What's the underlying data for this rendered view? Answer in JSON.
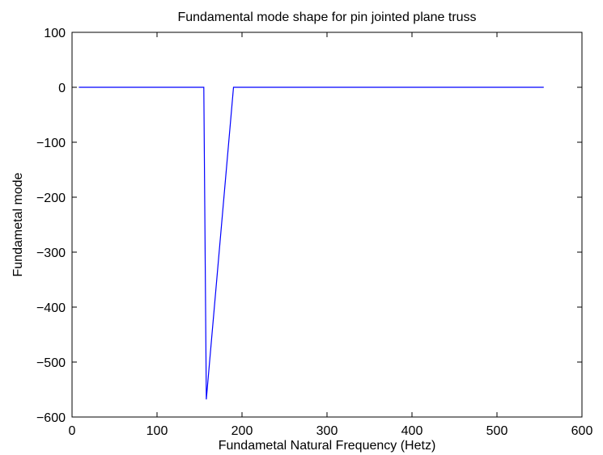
{
  "chart_data": {
    "type": "line",
    "title": "Fundamental mode shape for pin jointed plane truss",
    "xlabel": "Fundametal Natural Frequency (Hetz)",
    "ylabel": "Fundametal mode",
    "xlim": [
      0,
      600
    ],
    "ylim": [
      -600,
      100
    ],
    "xticks": [
      0,
      100,
      200,
      300,
      400,
      500,
      600
    ],
    "xtick_labels": [
      "0",
      "100",
      "200",
      "300",
      "400",
      "500",
      "600"
    ],
    "yticks": [
      100,
      0,
      -100,
      -200,
      -300,
      -400,
      -500,
      -600
    ],
    "ytick_labels": [
      "100",
      "0",
      "−100",
      "−200",
      "−300",
      "−400",
      "−500",
      "−600"
    ],
    "grid": false,
    "series": [
      {
        "color": "#0000ff",
        "x": [
          8,
          155,
          158,
          190,
          555
        ],
        "y": [
          0,
          0,
          -568,
          0,
          0
        ]
      }
    ]
  }
}
